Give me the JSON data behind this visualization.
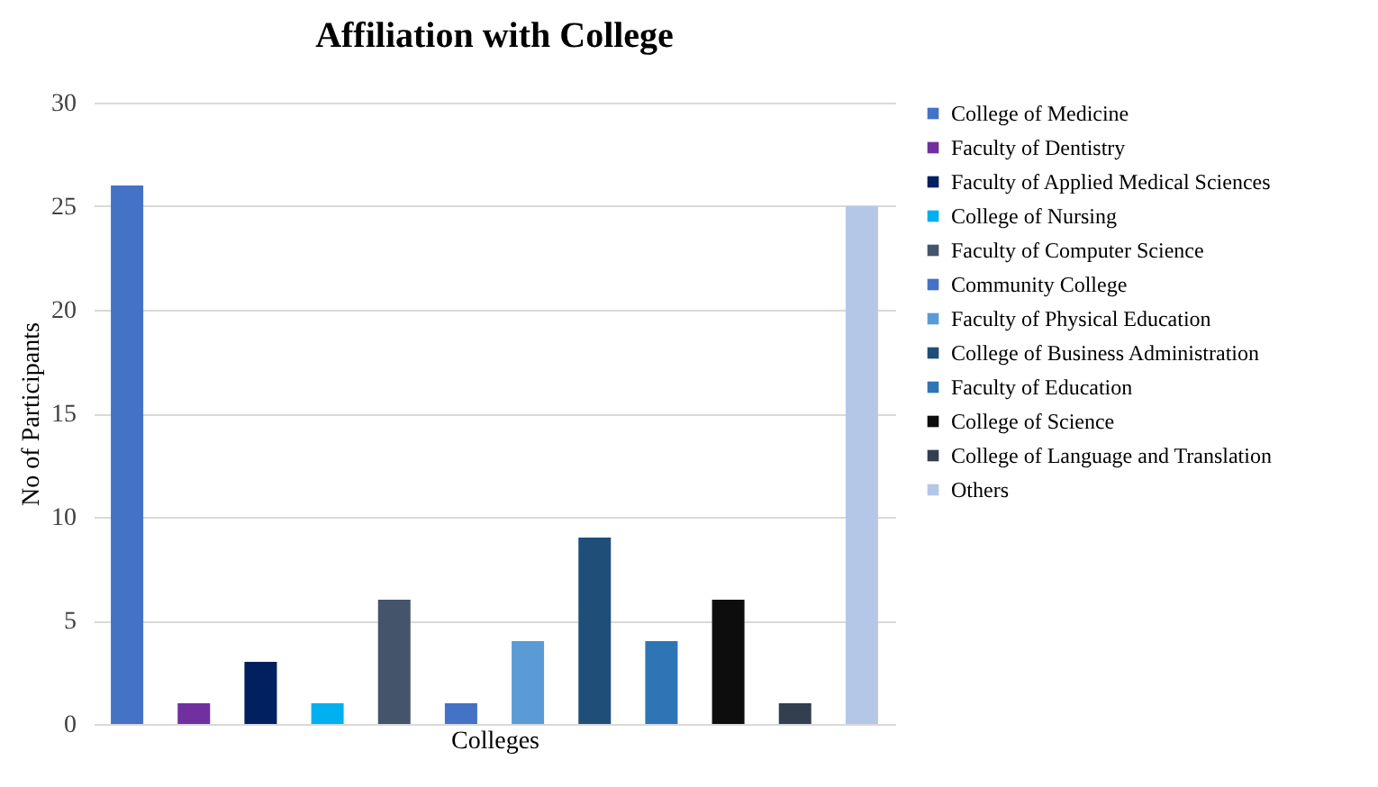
{
  "chart_data": {
    "type": "bar",
    "title": "Affiliation with College",
    "xlabel": "Colleges",
    "ylabel": "No of Participants",
    "categories": [
      null
    ],
    "series": [
      {
        "name": "College of Medicine",
        "color": "#4472c4",
        "values": [
          26
        ]
      },
      {
        "name": "Faculty of Dentistry",
        "color": "#7030a0",
        "values": [
          1
        ]
      },
      {
        "name": "Faculty of Applied Medical Sciences",
        "color": "#002060",
        "values": [
          3
        ]
      },
      {
        "name": "College of Nursing",
        "color": "#00b0f0",
        "values": [
          1
        ]
      },
      {
        "name": "Faculty of Computer Science",
        "color": "#44546a",
        "values": [
          6
        ]
      },
      {
        "name": "Community College",
        "color": "#4472c4",
        "values": [
          1
        ]
      },
      {
        "name": "Faculty of Physical Education",
        "color": "#5b9bd5",
        "values": [
          4
        ]
      },
      {
        "name": "College of Business Administration",
        "color": "#1f4e79",
        "values": [
          9
        ]
      },
      {
        "name": "Faculty of Education",
        "color": "#2e75b6",
        "values": [
          4
        ]
      },
      {
        "name": "College of Science",
        "color": "#0d0d0d",
        "values": [
          6
        ]
      },
      {
        "name": "College of Language and Translation",
        "color": "#333f50",
        "values": [
          1
        ]
      },
      {
        "name": "Others",
        "color": "#b4c7e7",
        "values": [
          25
        ]
      }
    ],
    "ylim": [
      0,
      30
    ],
    "yticks": [
      0,
      5,
      10,
      15,
      20,
      25,
      30
    ],
    "grid": "y",
    "legend": "right"
  }
}
